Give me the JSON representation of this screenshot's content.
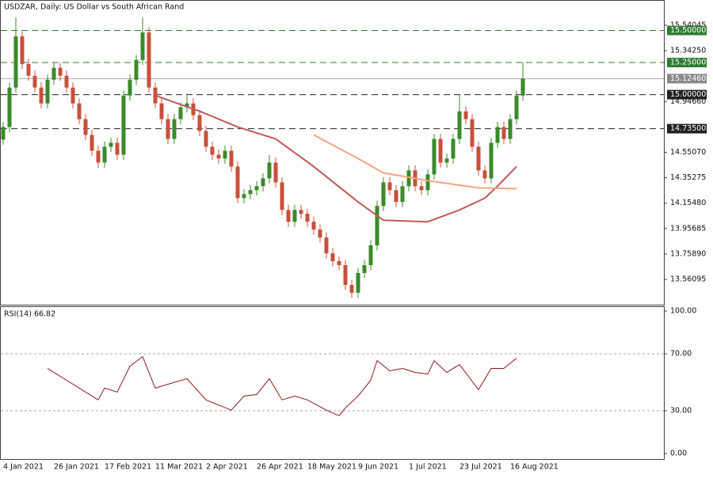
{
  "chart_data": [
    {
      "type": "candlestick",
      "title": "USDZAR, Daily:  US Dollar vs South African Rand",
      "categories": [
        "4 Jan 2021",
        null,
        null,
        null,
        null,
        null,
        null,
        null,
        "26 Jan 2021",
        null,
        null,
        null,
        null,
        null,
        null,
        null,
        "17 Feb 2021",
        null,
        null,
        null,
        null,
        null,
        null,
        null,
        "11 Mar 2021",
        null,
        null,
        null,
        null,
        null,
        null,
        null,
        "2 Apr 2021",
        null,
        null,
        null,
        null,
        null,
        null,
        null,
        "26 Apr 2021",
        null,
        null,
        null,
        null,
        null,
        null,
        null,
        "18 May 2021",
        null,
        null,
        null,
        null,
        null,
        null,
        null,
        "9 Jun 2021",
        null,
        null,
        null,
        null,
        null,
        null,
        null,
        "1 Jul 2021",
        null,
        null,
        null,
        null,
        null,
        null,
        null,
        "23 Jul 2021",
        null,
        null,
        null,
        null,
        null,
        null,
        null,
        "16 Aug 2021",
        null,
        null
      ],
      "open": [
        14.65,
        14.748,
        15.055,
        15.454,
        15.239,
        15.147,
        15.055,
        14.932,
        15.116,
        15.209,
        15.147,
        15.055,
        14.932,
        14.809,
        14.686,
        14.563,
        14.471,
        14.594,
        14.625,
        14.532,
        14.993,
        15.116,
        15.27,
        15.485,
        15.055,
        14.932,
        14.809,
        14.655,
        14.809,
        14.901,
        14.932,
        14.84,
        14.717,
        14.594,
        14.532,
        14.502,
        14.563,
        14.44,
        14.194,
        14.225,
        14.256,
        14.287,
        14.348,
        14.471,
        14.317,
        14.102,
        14.01,
        14.102,
        14.072,
        14.01,
        13.949,
        13.887,
        13.764,
        13.703,
        13.672,
        13.518,
        13.457,
        13.611,
        13.672,
        13.826,
        14.133,
        14.317,
        14.256,
        14.164,
        14.287,
        14.41,
        14.287,
        14.256,
        14.379,
        14.655,
        14.471,
        14.502,
        14.655,
        14.87,
        14.809,
        14.594,
        14.41,
        14.348,
        14.625,
        14.748,
        14.655,
        14.809,
        14.993
      ],
      "high": [
        14.788,
        15.095,
        15.6,
        15.494,
        15.279,
        15.187,
        15.095,
        15.156,
        15.249,
        15.249,
        15.187,
        15.095,
        14.972,
        14.849,
        14.726,
        14.603,
        14.634,
        14.665,
        14.665,
        15.033,
        15.156,
        15.31,
        15.6,
        15.525,
        15.095,
        14.972,
        14.849,
        14.849,
        14.941,
        15.01,
        14.972,
        14.88,
        14.757,
        14.634,
        14.572,
        14.603,
        14.603,
        14.48,
        14.265,
        14.296,
        14.327,
        14.388,
        14.53,
        14.511,
        14.357,
        14.142,
        14.142,
        14.142,
        14.112,
        14.05,
        13.989,
        13.927,
        13.804,
        13.743,
        13.712,
        13.558,
        13.651,
        13.712,
        13.866,
        14.173,
        14.357,
        14.357,
        14.296,
        14.327,
        14.45,
        14.45,
        14.327,
        14.419,
        14.695,
        14.695,
        14.542,
        14.695,
        15.0,
        14.91,
        14.849,
        14.634,
        14.45,
        14.665,
        14.788,
        14.788,
        14.849,
        15.033,
        15.25
      ],
      "low": [
        14.61,
        14.708,
        15.015,
        15.199,
        15.107,
        15.015,
        14.892,
        14.892,
        15.076,
        15.107,
        15.015,
        14.892,
        14.769,
        14.646,
        14.523,
        14.431,
        14.431,
        14.554,
        14.492,
        14.492,
        14.953,
        15.076,
        15.23,
        15.015,
        14.892,
        14.769,
        14.615,
        14.615,
        14.769,
        14.861,
        14.8,
        14.677,
        14.554,
        14.492,
        14.462,
        14.462,
        14.4,
        14.154,
        14.154,
        14.185,
        14.216,
        14.247,
        14.308,
        14.277,
        14.062,
        13.97,
        13.97,
        14.032,
        13.97,
        13.909,
        13.847,
        13.724,
        13.663,
        13.632,
        13.478,
        13.417,
        13.417,
        13.571,
        13.632,
        13.786,
        14.093,
        14.216,
        14.124,
        14.124,
        14.247,
        14.247,
        14.216,
        14.216,
        14.339,
        14.431,
        14.431,
        14.462,
        14.615,
        14.769,
        14.554,
        14.37,
        14.308,
        14.308,
        14.585,
        14.615,
        14.615,
        14.769,
        14.953
      ],
      "close": [
        14.748,
        15.055,
        15.454,
        15.239,
        15.147,
        15.055,
        14.932,
        15.116,
        15.209,
        15.147,
        15.055,
        14.932,
        14.809,
        14.686,
        14.563,
        14.471,
        14.594,
        14.625,
        14.532,
        14.993,
        15.116,
        15.27,
        15.485,
        15.055,
        14.932,
        14.809,
        14.655,
        14.809,
        14.901,
        14.932,
        14.84,
        14.717,
        14.594,
        14.532,
        14.502,
        14.563,
        14.44,
        14.194,
        14.225,
        14.256,
        14.287,
        14.348,
        14.471,
        14.317,
        14.102,
        14.01,
        14.102,
        14.072,
        14.01,
        13.949,
        13.887,
        13.764,
        13.703,
        13.672,
        13.518,
        13.457,
        13.611,
        13.672,
        13.826,
        14.133,
        14.317,
        14.256,
        14.164,
        14.287,
        14.41,
        14.287,
        14.256,
        14.379,
        14.655,
        14.471,
        14.502,
        14.655,
        14.87,
        14.809,
        14.594,
        14.41,
        14.348,
        14.625,
        14.748,
        14.655,
        14.809,
        14.993,
        15.125
      ],
      "up_color": "#3a8a2a",
      "down_color": "#c8503c",
      "lines": [
        {
          "color": "#c05a5a",
          "x": [
            24,
            31,
            37,
            43,
            49,
            56,
            60,
            67,
            72,
            76,
            78,
            81
          ],
          "values": [
            14.993,
            14.871,
            14.748,
            14.655,
            14.44,
            14.164,
            14.022,
            14.01,
            14.102,
            14.194,
            14.287,
            14.44
          ]
        },
        {
          "color": "#f4a582",
          "x": [
            49,
            56,
            60,
            67,
            75,
            81
          ],
          "values": [
            14.686,
            14.502,
            14.391,
            14.33,
            14.274,
            14.268
          ]
        }
      ],
      "levels": [
        {
          "value": 15.5,
          "label": "15.50000",
          "color": "#2e7d32",
          "dash": true
        },
        {
          "value": 15.25,
          "label": "15.25000",
          "color": "#2e7d32",
          "dash": true
        },
        {
          "value": 15.1246,
          "label": "15.12460",
          "color": "#8a8a8a",
          "dash": false
        },
        {
          "value": 15.0,
          "label": "15.00000",
          "color": "#222222",
          "dash": true
        },
        {
          "value": 14.735,
          "label": "14.73500",
          "color": "#222222",
          "dash": true
        }
      ],
      "ylim": [
        13.364,
        15.731
      ],
      "yticks": [
        15.54045,
        {
          "value": 15.3425,
          "label": "15.34250"
        },
        {
          "value": 14.9466,
          "label": "14.94660"
        },
        {
          "value": 14.5507,
          "label": "14.55070"
        },
        14.35275,
        {
          "value": 14.1548,
          "label": "14.15480"
        },
        13.95685,
        {
          "value": 13.7589,
          "label": "13.75890"
        },
        13.56095
      ]
    },
    {
      "type": "line",
      "title": "RSI(14) 66.82",
      "color": "#8b1a1a",
      "x": [
        7,
        8,
        10,
        12,
        15,
        16,
        18,
        20,
        22,
        24,
        26,
        29,
        32,
        36,
        38,
        40,
        42,
        44,
        46,
        48,
        51,
        53,
        54,
        56,
        58,
        59,
        61,
        63,
        65,
        67,
        68,
        70,
        72,
        75,
        77,
        79,
        81
      ],
      "values": [
        59.7,
        56.9,
        51.4,
        45.9,
        37.6,
        45.9,
        43.1,
        61.3,
        68.0,
        45.9,
        48.6,
        52.5,
        37.6,
        30.4,
        40.3,
        41.4,
        52.5,
        37.6,
        40.3,
        37.6,
        30.4,
        26.5,
        32.0,
        40.3,
        51.4,
        65.2,
        58.0,
        59.7,
        56.9,
        55.8,
        65.2,
        56.9,
        62.4,
        44.8,
        59.7,
        59.7,
        66.9
      ],
      "ylim": [
        -3.9,
        102.8
      ],
      "yticks": [
        {
          "value": 100,
          "label": "100.00"
        },
        {
          "value": 70,
          "label": "70.00"
        },
        {
          "value": 30,
          "label": "30.00"
        },
        {
          "value": 0,
          "label": "0.00"
        }
      ],
      "levels": [
        70,
        30
      ]
    }
  ]
}
